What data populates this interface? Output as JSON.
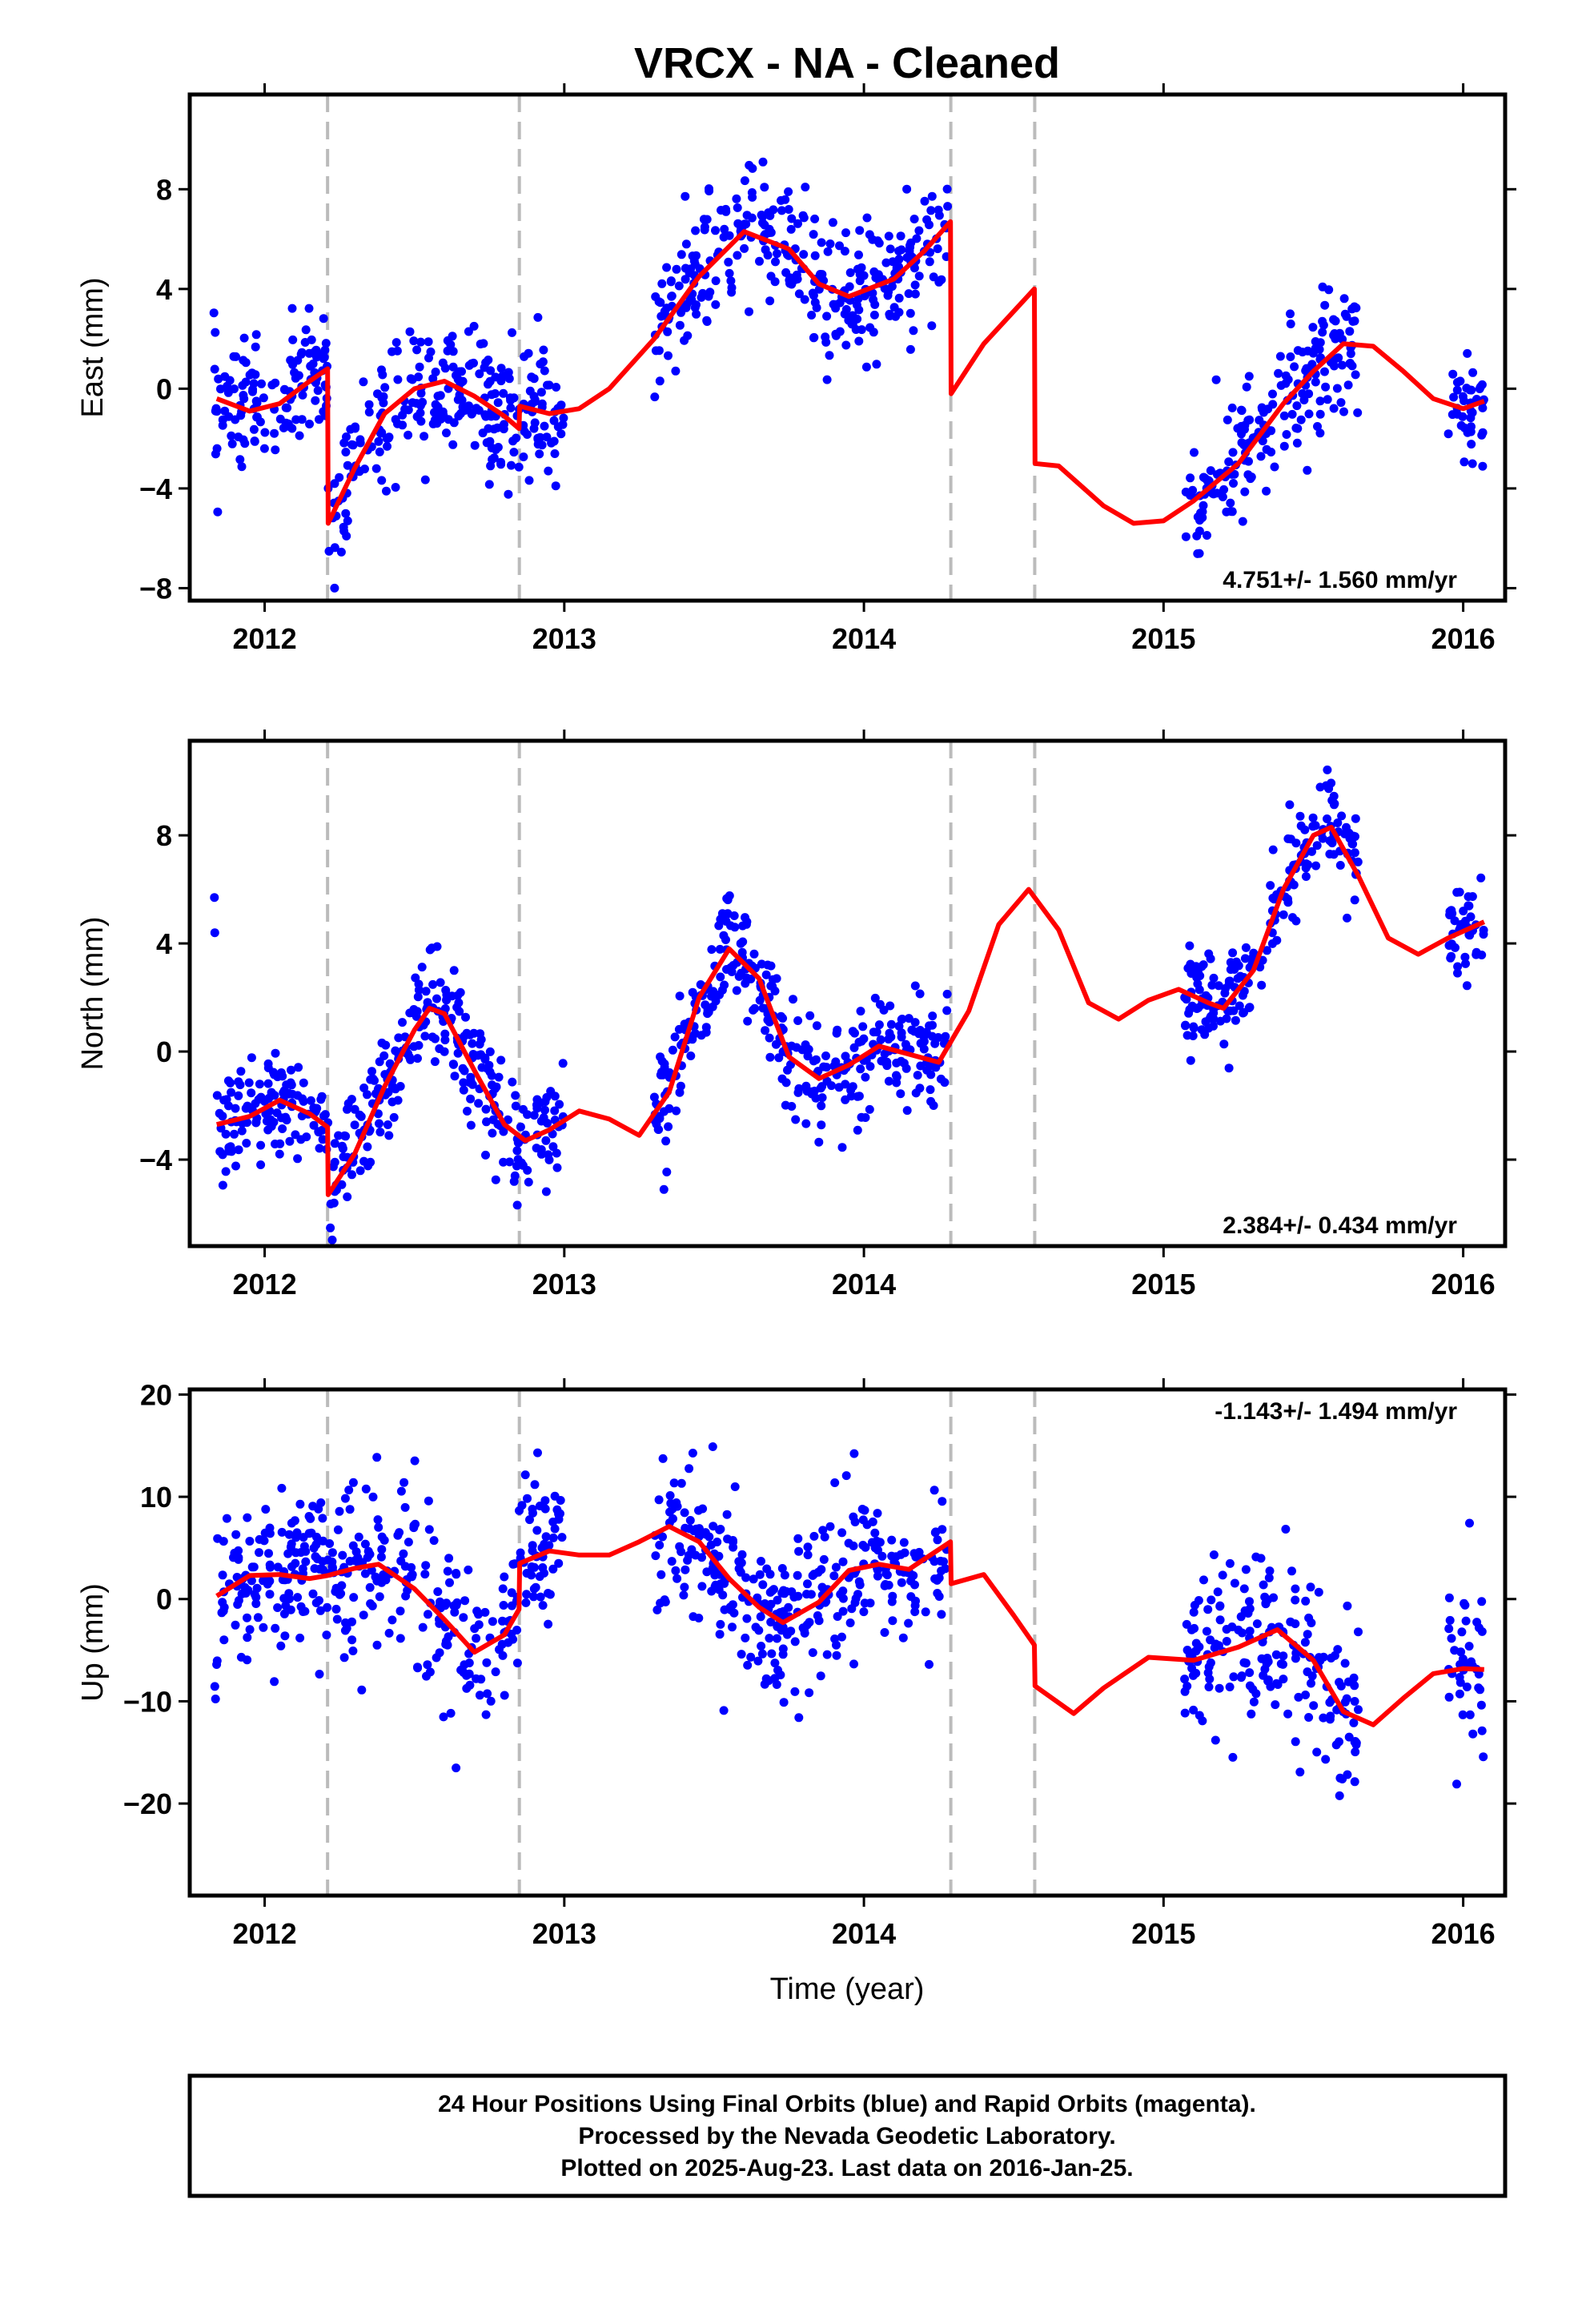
{
  "title": "VRCX  - NA - Cleaned",
  "xlabel": "Time (year)",
  "footer": {
    "line1": "24 Hour Positions Using Final Orbits (blue) and Rapid Orbits (magenta).",
    "line2": "Processed by the Nevada Geodetic Laboratory.",
    "line3": "Plotted on 2025-Aug-23. Last data on 2016-Jan-25."
  },
  "colors": {
    "points": "#0000ff",
    "model": "#ff0000",
    "events": "#bbbbbb",
    "frame": "#000000"
  },
  "chart_data": [
    {
      "type": "scatter",
      "ylabel": "East (mm)",
      "rate": "4.751+/- 1.560 mm/yr",
      "xlim": [
        2011.75,
        2016.14
      ],
      "ylim": [
        -8.5,
        11.8
      ],
      "yticks": [
        -8,
        -4,
        0,
        4,
        8
      ],
      "xticks": [
        2012,
        2013,
        2014,
        2015,
        2016
      ],
      "events": [
        2012.21,
        2012.85,
        2014.29,
        2014.57
      ],
      "data_ranges": [
        [
          2011.83,
          2013.0
        ],
        [
          2013.3,
          2014.28
        ],
        [
          2015.07,
          2015.65
        ],
        [
          2015.95,
          2016.07
        ]
      ],
      "scatter_sd": 1.3,
      "model": [
        [
          2011.84,
          -0.4
        ],
        [
          2011.95,
          -0.9
        ],
        [
          2012.05,
          -0.6
        ],
        [
          2012.15,
          0.3
        ],
        [
          2012.21,
          0.8
        ],
        [
          2012.212,
          -5.4
        ],
        [
          2012.3,
          -3.2
        ],
        [
          2012.4,
          -1.0
        ],
        [
          2012.5,
          0.0
        ],
        [
          2012.6,
          0.3
        ],
        [
          2012.7,
          -0.3
        ],
        [
          2012.8,
          -1.1
        ],
        [
          2012.849,
          -1.6
        ],
        [
          2012.851,
          -0.7
        ],
        [
          2012.95,
          -1.0
        ],
        [
          2013.05,
          -0.8
        ],
        [
          2013.15,
          0.0
        ],
        [
          2013.3,
          2.0
        ],
        [
          2013.45,
          4.5
        ],
        [
          2013.6,
          6.3
        ],
        [
          2013.75,
          5.6
        ],
        [
          2013.85,
          4.2
        ],
        [
          2013.95,
          3.7
        ],
        [
          2014.1,
          4.4
        ],
        [
          2014.2,
          5.5
        ],
        [
          2014.289,
          6.7
        ],
        [
          2014.291,
          -0.2
        ],
        [
          2014.4,
          1.8
        ],
        [
          2014.569,
          4.0
        ],
        [
          2014.571,
          -3.0
        ],
        [
          2014.65,
          -3.1
        ],
        [
          2014.8,
          -4.7
        ],
        [
          2014.9,
          -5.4
        ],
        [
          2015.0,
          -5.3
        ],
        [
          2015.1,
          -4.5
        ],
        [
          2015.25,
          -3.0
        ],
        [
          2015.4,
          -0.6
        ],
        [
          2015.5,
          0.7
        ],
        [
          2015.6,
          1.8
        ],
        [
          2015.7,
          1.7
        ],
        [
          2015.8,
          0.7
        ],
        [
          2015.9,
          -0.4
        ],
        [
          2016.0,
          -0.8
        ],
        [
          2016.07,
          -0.5
        ]
      ]
    },
    {
      "type": "scatter",
      "ylabel": "North (mm)",
      "rate": "2.384+/- 0.434 mm/yr",
      "xlim": [
        2011.75,
        2016.14
      ],
      "ylim": [
        -7.2,
        11.5
      ],
      "yticks": [
        -4,
        0,
        4,
        8
      ],
      "xticks": [
        2012,
        2013,
        2014,
        2015,
        2016
      ],
      "events": [
        2012.21,
        2012.85,
        2014.29,
        2014.57
      ],
      "data_ranges": [
        [
          2011.83,
          2013.0
        ],
        [
          2013.3,
          2014.28
        ],
        [
          2015.07,
          2015.65
        ],
        [
          2015.95,
          2016.07
        ]
      ],
      "scatter_sd": 1.0,
      "model": [
        [
          2011.84,
          -2.7
        ],
        [
          2011.95,
          -2.4
        ],
        [
          2012.05,
          -1.8
        ],
        [
          2012.15,
          -2.3
        ],
        [
          2012.21,
          -2.8
        ],
        [
          2012.212,
          -5.3
        ],
        [
          2012.3,
          -3.8
        ],
        [
          2012.4,
          -1.3
        ],
        [
          2012.5,
          0.8
        ],
        [
          2012.55,
          1.6
        ],
        [
          2012.6,
          1.4
        ],
        [
          2012.7,
          -0.7
        ],
        [
          2012.8,
          -2.7
        ],
        [
          2012.87,
          -3.3
        ],
        [
          2012.95,
          -2.9
        ],
        [
          2013.05,
          -2.2
        ],
        [
          2013.15,
          -2.5
        ],
        [
          2013.25,
          -3.1
        ],
        [
          2013.35,
          -1.5
        ],
        [
          2013.45,
          2.0
        ],
        [
          2013.55,
          3.8
        ],
        [
          2013.65,
          2.7
        ],
        [
          2013.75,
          -0.2
        ],
        [
          2013.85,
          -1.0
        ],
        [
          2013.95,
          -0.5
        ],
        [
          2014.05,
          0.2
        ],
        [
          2014.15,
          -0.1
        ],
        [
          2014.25,
          -0.4
        ],
        [
          2014.35,
          1.5
        ],
        [
          2014.45,
          4.7
        ],
        [
          2014.55,
          6.0
        ],
        [
          2014.65,
          4.5
        ],
        [
          2014.75,
          1.8
        ],
        [
          2014.85,
          1.2
        ],
        [
          2014.95,
          1.9
        ],
        [
          2015.05,
          2.3
        ],
        [
          2015.15,
          1.8
        ],
        [
          2015.2,
          1.6
        ],
        [
          2015.3,
          3.0
        ],
        [
          2015.4,
          6.0
        ],
        [
          2015.5,
          8.0
        ],
        [
          2015.56,
          8.3
        ],
        [
          2015.65,
          6.5
        ],
        [
          2015.75,
          4.2
        ],
        [
          2015.85,
          3.6
        ],
        [
          2015.95,
          4.2
        ],
        [
          2016.07,
          4.8
        ]
      ]
    },
    {
      "type": "scatter",
      "ylabel": "Up (mm)",
      "rate": "-1.143+/- 1.494 mm/yr",
      "xlim": [
        2011.75,
        2016.14
      ],
      "ylim": [
        -29.0,
        20.5
      ],
      "yticks": [
        -20,
        -10,
        0,
        10,
        20
      ],
      "xticks": [
        2012,
        2013,
        2014,
        2015,
        2016
      ],
      "events": [
        2012.21,
        2012.85,
        2014.29,
        2014.57
      ],
      "data_ranges": [
        [
          2011.83,
          2013.0
        ],
        [
          2013.3,
          2014.28
        ],
        [
          2015.07,
          2015.65
        ],
        [
          2015.95,
          2016.07
        ]
      ],
      "scatter_sd": 4.0,
      "model": [
        [
          2011.84,
          0.3
        ],
        [
          2011.95,
          2.3
        ],
        [
          2012.05,
          2.4
        ],
        [
          2012.15,
          2.0
        ],
        [
          2012.21,
          2.3
        ],
        [
          2012.3,
          3.0
        ],
        [
          2012.38,
          3.4
        ],
        [
          2012.5,
          1.0
        ],
        [
          2012.6,
          -2.0
        ],
        [
          2012.7,
          -5.2
        ],
        [
          2012.8,
          -3.5
        ],
        [
          2012.849,
          -1.0
        ],
        [
          2012.851,
          3.5
        ],
        [
          2012.95,
          4.7
        ],
        [
          2013.05,
          4.3
        ],
        [
          2013.15,
          4.3
        ],
        [
          2013.25,
          5.6
        ],
        [
          2013.35,
          7.1
        ],
        [
          2013.45,
          5.6
        ],
        [
          2013.55,
          2.0
        ],
        [
          2013.65,
          -0.8
        ],
        [
          2013.73,
          -2.3
        ],
        [
          2013.85,
          -0.3
        ],
        [
          2013.95,
          2.8
        ],
        [
          2014.05,
          3.4
        ],
        [
          2014.15,
          2.9
        ],
        [
          2014.289,
          5.6
        ],
        [
          2014.291,
          1.5
        ],
        [
          2014.4,
          2.4
        ],
        [
          2014.5,
          -1.6
        ],
        [
          2014.569,
          -4.5
        ],
        [
          2014.571,
          -8.5
        ],
        [
          2014.7,
          -11.2
        ],
        [
          2014.8,
          -8.7
        ],
        [
          2014.95,
          -5.7
        ],
        [
          2015.1,
          -6.0
        ],
        [
          2015.25,
          -4.7
        ],
        [
          2015.38,
          -3.0
        ],
        [
          2015.5,
          -6.0
        ],
        [
          2015.6,
          -11.0
        ],
        [
          2015.7,
          -12.3
        ],
        [
          2015.8,
          -9.7
        ],
        [
          2015.9,
          -7.3
        ],
        [
          2016.0,
          -6.8
        ],
        [
          2016.07,
          -6.9
        ]
      ]
    }
  ]
}
